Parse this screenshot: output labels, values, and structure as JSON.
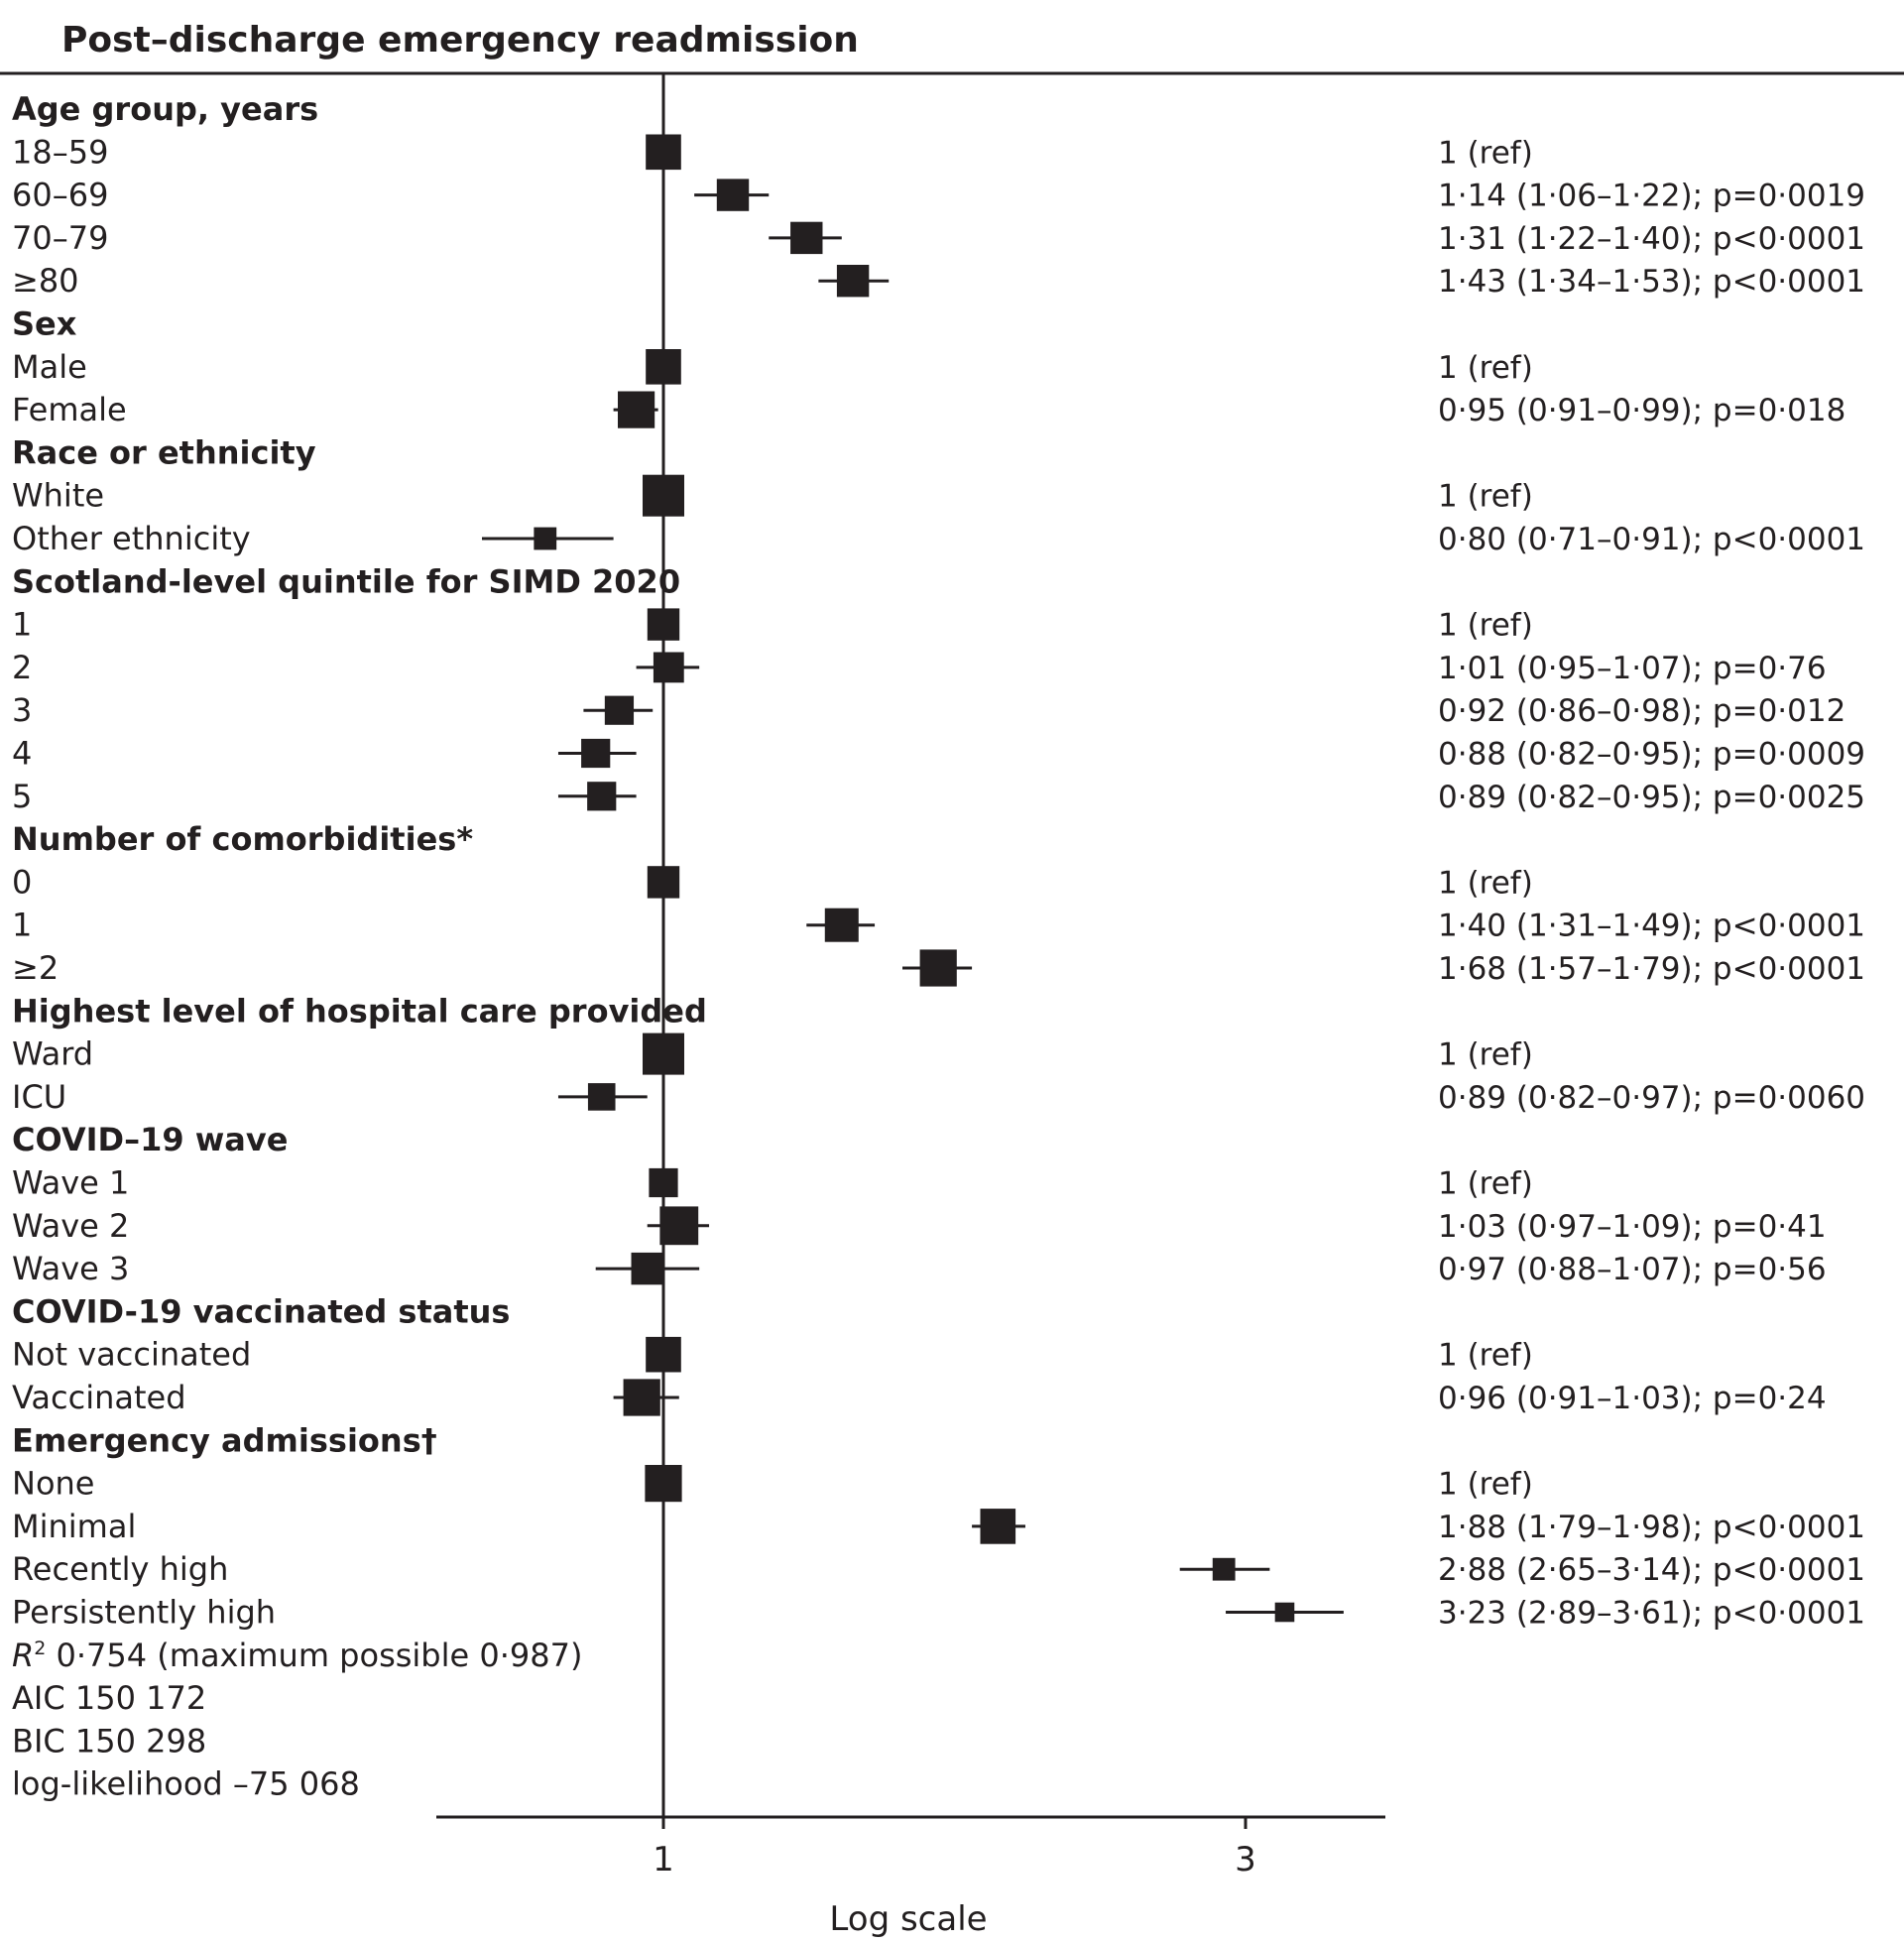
{
  "chart_data": {
    "type": "forest",
    "title": "Post–discharge emergency readmission",
    "xlabel": "Log scale",
    "x_scale": "log",
    "xlim": [
      0.7,
      3.6
    ],
    "xticks": [
      {
        "value": 1,
        "label": "1"
      },
      {
        "value": 3,
        "label": "3"
      }
    ],
    "reference_line": 1,
    "rows": [
      {
        "type": "header",
        "label": "Age group, years"
      },
      {
        "type": "row",
        "label": "18–59",
        "or": 1,
        "lo": 1,
        "hi": 1,
        "weight": 0.8,
        "text": "1 (ref)"
      },
      {
        "type": "row",
        "label": "60–69",
        "or": 1.14,
        "lo": 1.06,
        "hi": 1.22,
        "weight": 0.7,
        "text": "1·14 (1·06–1·22); p=0·0019"
      },
      {
        "type": "row",
        "label": "70–79",
        "or": 1.31,
        "lo": 1.22,
        "hi": 1.4,
        "weight": 0.7,
        "text": "1·31 (1·22–1·40); p<0·0001"
      },
      {
        "type": "row",
        "label": "≥80",
        "or": 1.43,
        "lo": 1.34,
        "hi": 1.53,
        "weight": 0.7,
        "text": "1·43 (1·34–1·53); p<0·0001"
      },
      {
        "type": "header",
        "label": "Sex"
      },
      {
        "type": "row",
        "label": "Male",
        "or": 1,
        "lo": 1,
        "hi": 1,
        "weight": 0.8,
        "text": "1 (ref)"
      },
      {
        "type": "row",
        "label": "Female",
        "or": 0.95,
        "lo": 0.91,
        "hi": 0.99,
        "weight": 0.85,
        "text": "0·95 (0·91–0·99); p=0·018"
      },
      {
        "type": "header",
        "label": "Race or ethnicity"
      },
      {
        "type": "row",
        "label": "White",
        "or": 1,
        "lo": 1,
        "hi": 1,
        "weight": 1.0,
        "text": "1 (ref)"
      },
      {
        "type": "row",
        "label": "Other ethnicity",
        "or": 0.8,
        "lo": 0.71,
        "hi": 0.91,
        "weight": 0.4,
        "text": "0·80 (0·71–0·91); p<0·0001"
      },
      {
        "type": "header",
        "label": "Scotland-level quintile for SIMD 2020"
      },
      {
        "type": "row",
        "label": "1",
        "or": 1,
        "lo": 1,
        "hi": 1,
        "weight": 0.7,
        "text": "1 (ref)"
      },
      {
        "type": "row",
        "label": "2",
        "or": 1.01,
        "lo": 0.95,
        "hi": 1.07,
        "weight": 0.65,
        "text": "1·01 (0·95–1·07); p=0·76"
      },
      {
        "type": "row",
        "label": "3",
        "or": 0.92,
        "lo": 0.86,
        "hi": 0.98,
        "weight": 0.6,
        "text": "0·92 (0·86–0·98); p=0·012"
      },
      {
        "type": "row",
        "label": "4",
        "or": 0.88,
        "lo": 0.82,
        "hi": 0.95,
        "weight": 0.6,
        "text": "0·88 (0·82–0·95); p=0·0009"
      },
      {
        "type": "row",
        "label": "5",
        "or": 0.89,
        "lo": 0.82,
        "hi": 0.95,
        "weight": 0.6,
        "text": "0·89 (0·82–0·95); p=0·0025"
      },
      {
        "type": "header",
        "label": "Number of comorbidities*"
      },
      {
        "type": "row",
        "label": "0",
        "or": 1,
        "lo": 1,
        "hi": 1,
        "weight": 0.7,
        "text": "1 (ref)"
      },
      {
        "type": "row",
        "label": "1",
        "or": 1.4,
        "lo": 1.31,
        "hi": 1.49,
        "weight": 0.75,
        "text": "1·40 (1·31–1·49); p<0·0001"
      },
      {
        "type": "row",
        "label": "≥2",
        "or": 1.68,
        "lo": 1.57,
        "hi": 1.79,
        "weight": 0.85,
        "text": "1·68 (1·57–1·79); p<0·0001"
      },
      {
        "type": "header",
        "label": "Highest level of hospital care provided"
      },
      {
        "type": "row",
        "label": "Ward",
        "or": 1,
        "lo": 1,
        "hi": 1,
        "weight": 1.0,
        "text": "1 (ref)"
      },
      {
        "type": "row",
        "label": "ICU",
        "or": 0.89,
        "lo": 0.82,
        "hi": 0.97,
        "weight": 0.55,
        "text": "0·89 (0·82–0·97); p=0·0060"
      },
      {
        "type": "header",
        "label": "COVID–19 wave"
      },
      {
        "type": "row",
        "label": "Wave 1",
        "or": 1,
        "lo": 1,
        "hi": 1,
        "weight": 0.6,
        "text": "1 (ref)"
      },
      {
        "type": "row",
        "label": "Wave 2",
        "or": 1.03,
        "lo": 0.97,
        "hi": 1.09,
        "weight": 0.9,
        "text": "1·03 (0·97–1·09); p=0·41"
      },
      {
        "type": "row",
        "label": "Wave 3",
        "or": 0.97,
        "lo": 0.88,
        "hi": 1.07,
        "weight": 0.7,
        "text": "0·97 (0·88–1·07); p=0·56"
      },
      {
        "type": "header",
        "label": "COVID-19 vaccinated status"
      },
      {
        "type": "row",
        "label": "Not vaccinated",
        "or": 1,
        "lo": 1,
        "hi": 1,
        "weight": 0.8,
        "text": "1 (ref)"
      },
      {
        "type": "row",
        "label": "Vaccinated",
        "or": 0.96,
        "lo": 0.91,
        "hi": 1.03,
        "weight": 0.85,
        "text": "0·96 (0·91–1·03); p=0·24"
      },
      {
        "type": "header",
        "label": "Emergency admissions†"
      },
      {
        "type": "row",
        "label": "None",
        "or": 1,
        "lo": 1,
        "hi": 1,
        "weight": 0.85,
        "text": "1 (ref)"
      },
      {
        "type": "row",
        "label": "Minimal",
        "or": 1.88,
        "lo": 1.79,
        "hi": 1.98,
        "weight": 0.8,
        "text": "1·88 (1·79–1·98); p<0·0001"
      },
      {
        "type": "row",
        "label": "Recently high",
        "or": 2.88,
        "lo": 2.65,
        "hi": 3.14,
        "weight": 0.4,
        "text": "2·88 (2·65–3·14); p<0·0001"
      },
      {
        "type": "row",
        "label": "Persistently high",
        "or": 3.23,
        "lo": 2.89,
        "hi": 3.61,
        "weight": 0.3,
        "text": "3·23 (2·89–3·61); p<0·0001"
      }
    ],
    "footnotes": [
      {
        "prefix": "R",
        "sup": "2",
        "rest": " 0·754 (maximum possible 0·987)"
      },
      {
        "text": "AIC 150 172"
      },
      {
        "text": "BIC 150 298"
      },
      {
        "text": "log-likelihood –75 068"
      }
    ]
  }
}
